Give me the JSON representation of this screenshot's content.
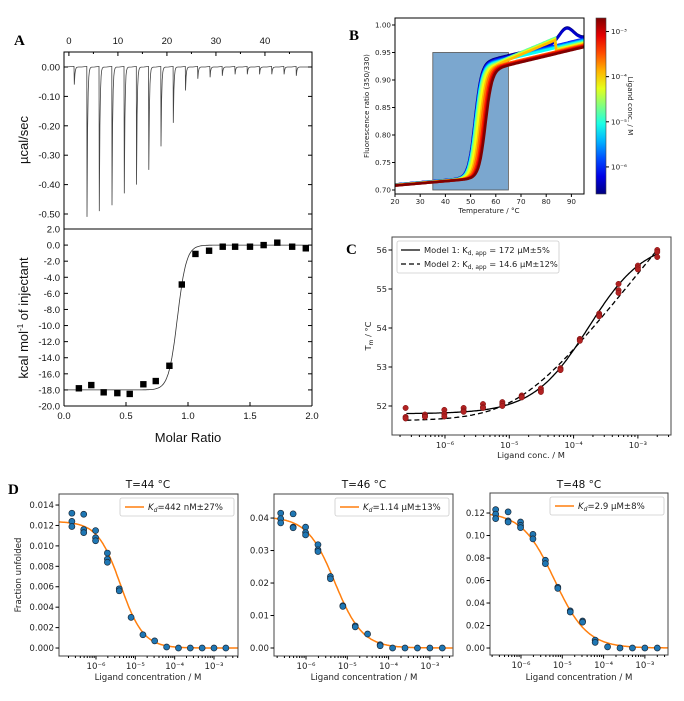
{
  "panel_labels": [
    "A",
    "B",
    "C",
    "D"
  ],
  "chart_data": [
    {
      "id": "A_top",
      "type": "line",
      "title": "",
      "xlabel": "",
      "ylabel": "µcal/sec",
      "xlim": [
        -1.0,
        49.6
      ],
      "ylim": [
        -0.551,
        0.051
      ],
      "xticks": [
        {
          "v": 0,
          "label": "0"
        },
        {
          "v": 10,
          "label": "10"
        },
        {
          "v": 20,
          "label": "20"
        },
        {
          "v": 30,
          "label": "30"
        },
        {
          "v": 40,
          "label": "40"
        }
      ],
      "yticks": [
        {
          "v": 0,
          "label": "0.00"
        },
        {
          "v": -0.1,
          "label": "-0.10"
        },
        {
          "v": -0.2,
          "label": "-0.20"
        },
        {
          "v": -0.3,
          "label": "-0.30"
        },
        {
          "v": -0.4,
          "label": "-0.40"
        },
        {
          "v": -0.5,
          "label": "-0.50"
        }
      ],
      "injections": {
        "time": [
          1.1,
          3.7,
          6.2,
          8.8,
          11.3,
          13.8,
          16.3,
          18.8,
          21.3,
          23.8,
          26.3,
          28.8,
          31.3,
          33.9,
          36.4,
          38.9,
          41.4,
          43.9,
          46.4
        ],
        "peak": [
          -0.06,
          -0.51,
          -0.49,
          -0.47,
          -0.43,
          -0.4,
          -0.35,
          -0.27,
          -0.19,
          -0.08,
          -0.04,
          -0.035,
          -0.03,
          -0.025,
          -0.025,
          -0.025,
          -0.025,
          -0.025,
          -0.03
        ]
      }
    },
    {
      "id": "A_bottom",
      "type": "scatter",
      "title": "",
      "xlabel": "Molar Ratio",
      "ylabel_main": "kcal mol",
      "ylabel_sup": "-1",
      "ylabel_tail": " of injectant",
      "xlim": [
        0,
        2
      ],
      "ylim": [
        -20,
        2
      ],
      "xticks": [
        {
          "v": 0,
          "label": "0.0"
        },
        {
          "v": 0.5,
          "label": "0.5"
        },
        {
          "v": 1.0,
          "label": "1.0"
        },
        {
          "v": 1.5,
          "label": "1.5"
        },
        {
          "v": 2.0,
          "label": "2.0"
        }
      ],
      "yticks": [
        {
          "v": 2,
          "label": "2.0"
        },
        {
          "v": 0,
          "label": "0.0"
        },
        {
          "v": -2,
          "label": "-2.0"
        },
        {
          "v": -4,
          "label": "-4.0"
        },
        {
          "v": -6,
          "label": "-6.0"
        },
        {
          "v": -8,
          "label": "-8.0"
        },
        {
          "v": -10,
          "label": "-10.0"
        },
        {
          "v": -12,
          "label": "-12.0"
        },
        {
          "v": -14,
          "label": "-14.0"
        },
        {
          "v": -16,
          "label": "-16.0"
        },
        {
          "v": -18,
          "label": "-18.0"
        },
        {
          "v": -20,
          "label": "-20.0"
        }
      ],
      "x": [
        0.12,
        0.22,
        0.32,
        0.43,
        0.53,
        0.64,
        0.74,
        0.85,
        0.95,
        1.06,
        1.17,
        1.28,
        1.38,
        1.5,
        1.61,
        1.72,
        1.84,
        1.95
      ],
      "y": [
        -17.8,
        -17.4,
        -18.3,
        -18.4,
        -18.5,
        -17.3,
        -16.9,
        -15.0,
        -4.9,
        -1.1,
        -0.7,
        -0.2,
        -0.2,
        -0.2,
        0.0,
        0.3,
        -0.2,
        -0.4
      ],
      "marker_color": "#000000"
    },
    {
      "id": "B",
      "type": "line",
      "title": "",
      "xlabel": "Temperature / °C",
      "ylabel": "Fluorescence ratio (350/330)",
      "xlim": [
        20,
        95
      ],
      "ylim": [
        0.6927,
        1.0127
      ],
      "xticks": [
        {
          "v": 20,
          "label": "20"
        },
        {
          "v": 30,
          "label": "30"
        },
        {
          "v": 40,
          "label": "40"
        },
        {
          "v": 50,
          "label": "50"
        },
        {
          "v": 60,
          "label": "60"
        },
        {
          "v": 70,
          "label": "70"
        },
        {
          "v": 80,
          "label": "80"
        },
        {
          "v": 90,
          "label": "90"
        }
      ],
      "yticks": [
        {
          "v": 0.7,
          "label": "0.70"
        },
        {
          "v": 0.75,
          "label": "0.75"
        },
        {
          "v": 0.8,
          "label": "0.80"
        },
        {
          "v": 0.85,
          "label": "0.85"
        },
        {
          "v": 0.9,
          "label": "0.90"
        },
        {
          "v": 0.95,
          "label": "0.95"
        },
        {
          "v": 1.0,
          "label": "1.00"
        }
      ],
      "shaded_region": {
        "x": [
          35,
          65
        ],
        "y": [
          0.7,
          0.95
        ],
        "color": "#7ba7cf"
      },
      "series_ligand_conc_M": [
        2.44e-07,
        4.88e-07,
        9.77e-07,
        1.95e-06,
        3.9e-06,
        7.8e-06,
        1.56e-05,
        3.1e-05,
        6.25e-05,
        0.000125,
        0.00025,
        0.0005,
        0.001,
        0.002
      ],
      "series_tm_C": [
        51.7,
        51.8,
        51.8,
        51.9,
        52.0,
        52.0,
        52.2,
        52.4,
        52.9,
        53.7,
        54.3,
        55.0,
        55.5,
        55.9
      ],
      "colormap": "jet",
      "colorbar": {
        "label": "Ligand conc. / M",
        "log_range": [
          -6.6,
          -2.7
        ],
        "ticks": [
          {
            "v": -3,
            "label": "10⁻³"
          },
          {
            "v": -4,
            "label": "10⁻⁴"
          },
          {
            "v": -5,
            "label": "10⁻⁵"
          },
          {
            "v": -6,
            "label": "10⁻⁶"
          }
        ]
      }
    },
    {
      "id": "C",
      "type": "scatter",
      "title": "",
      "xlabel": "Ligand conc. / M",
      "ylabel_main": "T",
      "ylabel_sub": "m",
      "ylabel_tail": " / °C",
      "xscale": "log",
      "xlim_log10": [
        -6.824,
        -2.485
      ],
      "ylim": [
        51.256,
        56.333
      ],
      "xticks": [
        {
          "v": -6,
          "label": "10⁻⁶"
        },
        {
          "v": -5,
          "label": "10⁻⁵"
        },
        {
          "v": -4,
          "label": "10⁻⁴"
        },
        {
          "v": -3,
          "label": "10⁻³"
        }
      ],
      "yticks": [
        {
          "v": 52,
          "label": "52"
        },
        {
          "v": 53,
          "label": "53"
        },
        {
          "v": 54,
          "label": "54"
        },
        {
          "v": 55,
          "label": "55"
        },
        {
          "v": 56,
          "label": "56"
        }
      ],
      "x": [
        2.44e-07,
        4.88e-07,
        9.77e-07,
        1.95e-06,
        3.9e-06,
        7.8e-06,
        1.56e-05,
        3.1e-05,
        6.25e-05,
        0.000125,
        0.00025,
        0.0005,
        0.001,
        0.002
      ],
      "y": [
        [
          51.95,
          51.72,
          51.68
        ],
        [
          51.78,
          51.74,
          51.72
        ],
        [
          51.9,
          51.8,
          51.73
        ],
        [
          51.95,
          51.88,
          51.85
        ],
        [
          52.05,
          51.97,
          51.95
        ],
        [
          52.1,
          52.05,
          52.0
        ],
        [
          52.27,
          52.24,
          52.22
        ],
        [
          52.45,
          52.4,
          52.36
        ],
        [
          52.97,
          52.94,
          52.92
        ],
        [
          53.72,
          53.7,
          53.67
        ],
        [
          54.37,
          54.33,
          54.3
        ],
        [
          55.13,
          54.97,
          54.9
        ],
        [
          55.6,
          55.55,
          55.5
        ],
        [
          56.0,
          55.95,
          55.82
        ]
      ],
      "marker_color": "#b22222",
      "legend": [
        {
          "style": "solid",
          "pre": "Model 1: K",
          "sub": "d, app",
          "post": " = 172 µM±5%"
        },
        {
          "style": "dashed",
          "pre": "Model 2: K",
          "sub": "d, app",
          "post": " = 14.6 µM±12%"
        }
      ],
      "legend_placement": "top-left"
    },
    {
      "id": "D1",
      "type": "scatter",
      "title": "T=44 °C",
      "xlabel": "Ligand concentration / M",
      "ylabel": "Fraction unfolded",
      "xscale": "log",
      "xlim_log10": [
        -6.94,
        -2.39
      ],
      "ylim": [
        -0.00078,
        0.01508
      ],
      "xticks": [
        {
          "v": -6,
          "label": "10⁻⁶"
        },
        {
          "v": -5,
          "label": "10⁻⁵"
        },
        {
          "v": -4,
          "label": "10⁻⁴"
        },
        {
          "v": -3,
          "label": "10⁻³"
        }
      ],
      "yticks": [
        {
          "v": 0,
          "label": "0.000"
        },
        {
          "v": 0.002,
          "label": "0.002"
        },
        {
          "v": 0.004,
          "label": "0.004"
        },
        {
          "v": 0.006,
          "label": "0.006"
        },
        {
          "v": 0.008,
          "label": "0.008"
        },
        {
          "v": 0.01,
          "label": "0.010"
        },
        {
          "v": 0.012,
          "label": "0.012"
        },
        {
          "v": 0.014,
          "label": "0.014"
        }
      ],
      "x": [
        2.44e-07,
        4.88e-07,
        9.77e-07,
        1.95e-06,
        3.9e-06,
        7.8e-06,
        1.56e-05,
        3.1e-05,
        6.25e-05,
        0.000125,
        0.00025,
        0.0005,
        0.001,
        0.002
      ],
      "y": [
        [
          0.0132,
          0.0124,
          0.0119
        ],
        [
          0.0131,
          0.0116,
          0.0113
        ],
        [
          0.0115,
          0.0108,
          0.0105
        ],
        [
          0.0093,
          0.0087,
          0.0084
        ],
        [
          0.0058,
          0.0056
        ],
        [
          0.003
        ],
        [
          0.0013
        ],
        [
          0.0007
        ],
        [
          0.0001
        ],
        [
          0
        ],
        [
          0
        ],
        [
          0
        ],
        [
          0
        ],
        [
          0
        ]
      ],
      "legend": {
        "pre": "K",
        "sub": "d",
        "post": "=442 nM±27%"
      },
      "legend_placement": "top-right",
      "fit_color": "#ff7f0e",
      "marker_color": "#1f77b4"
    },
    {
      "id": "D2",
      "type": "scatter",
      "title": "T=46 °C",
      "xlabel": "Ligand concentration / M",
      "ylabel": "",
      "xscale": "log",
      "xlim_log10": [
        -6.775,
        -2.44
      ],
      "ylim": [
        -0.00246,
        0.0474
      ],
      "xticks": [
        {
          "v": -6,
          "label": "10⁻⁶"
        },
        {
          "v": -5,
          "label": "10⁻⁵"
        },
        {
          "v": -4,
          "label": "10⁻⁴"
        },
        {
          "v": -3,
          "label": "10⁻³"
        }
      ],
      "yticks": [
        {
          "v": 0,
          "label": "0.00"
        },
        {
          "v": 0.01,
          "label": "0.01"
        },
        {
          "v": 0.02,
          "label": "0.02"
        },
        {
          "v": 0.03,
          "label": "0.03"
        },
        {
          "v": 0.04,
          "label": "0.04"
        }
      ],
      "x": [
        2.44e-07,
        4.88e-07,
        9.77e-07,
        1.95e-06,
        3.9e-06,
        7.8e-06,
        1.56e-05,
        3.1e-05,
        6.25e-05,
        0.000125,
        0.00025,
        0.0005,
        0.001,
        0.002
      ],
      "y": [
        [
          0.0415,
          0.0398,
          0.0385
        ],
        [
          0.0413,
          0.0372,
          0.037
        ],
        [
          0.0372,
          0.0355,
          0.0348
        ],
        [
          0.0318,
          0.0302,
          0.0297
        ],
        [
          0.022,
          0.0213
        ],
        [
          0.013,
          0.0128
        ],
        [
          0.0068,
          0.0065
        ],
        [
          0.0043
        ],
        [
          0.001,
          0.0007
        ],
        [
          0
        ],
        [
          0
        ],
        [
          0
        ],
        [
          0
        ],
        [
          0
        ]
      ],
      "legend": {
        "pre": "K",
        "sub": "d",
        "post": "=1.14 µM±13%"
      },
      "legend_placement": "top-right",
      "fit_color": "#ff7f0e",
      "marker_color": "#1f77b4"
    },
    {
      "id": "D3",
      "type": "scatter",
      "title": "T=48 °C",
      "xlabel": "Ligand concentration / M",
      "ylabel": "",
      "xscale": "log",
      "xlim_log10": [
        -6.75,
        -2.44
      ],
      "ylim": [
        -0.0062,
        0.1378
      ],
      "xticks": [
        {
          "v": -6,
          "label": "10⁻⁶"
        },
        {
          "v": -5,
          "label": "10⁻⁵"
        },
        {
          "v": -4,
          "label": "10⁻⁴"
        },
        {
          "v": -3,
          "label": "10⁻³"
        }
      ],
      "yticks": [
        {
          "v": 0,
          "label": "0.00"
        },
        {
          "v": 0.02,
          "label": "0.02"
        },
        {
          "v": 0.04,
          "label": "0.04"
        },
        {
          "v": 0.06,
          "label": "0.06"
        },
        {
          "v": 0.08,
          "label": "0.08"
        },
        {
          "v": 0.1,
          "label": "0.10"
        },
        {
          "v": 0.12,
          "label": "0.12"
        }
      ],
      "x": [
        2.44e-07,
        4.88e-07,
        9.77e-07,
        1.95e-06,
        3.9e-06,
        7.8e-06,
        1.56e-05,
        3.1e-05,
        6.25e-05,
        0.000125,
        0.00025,
        0.0005,
        0.001,
        0.002
      ],
      "y": [
        [
          0.123,
          0.119,
          0.115
        ],
        [
          0.121,
          0.113,
          0.112
        ],
        [
          0.112,
          0.109,
          0.107
        ],
        [
          0.101,
          0.097
        ],
        [
          0.078,
          0.075
        ],
        [
          0.054,
          0.053
        ],
        [
          0.033,
          0.032
        ],
        [
          0.024,
          0.023
        ],
        [
          0.007,
          0.005
        ],
        [
          0.001
        ],
        [
          0
        ],
        [
          0
        ],
        [
          0
        ],
        [
          0
        ]
      ],
      "legend": {
        "pre": "K",
        "sub": "d",
        "post": "=2.9 µM±8%"
      },
      "legend_placement": "top-right",
      "fit_color": "#ff7f0e",
      "marker_color": "#1f77b4"
    }
  ]
}
